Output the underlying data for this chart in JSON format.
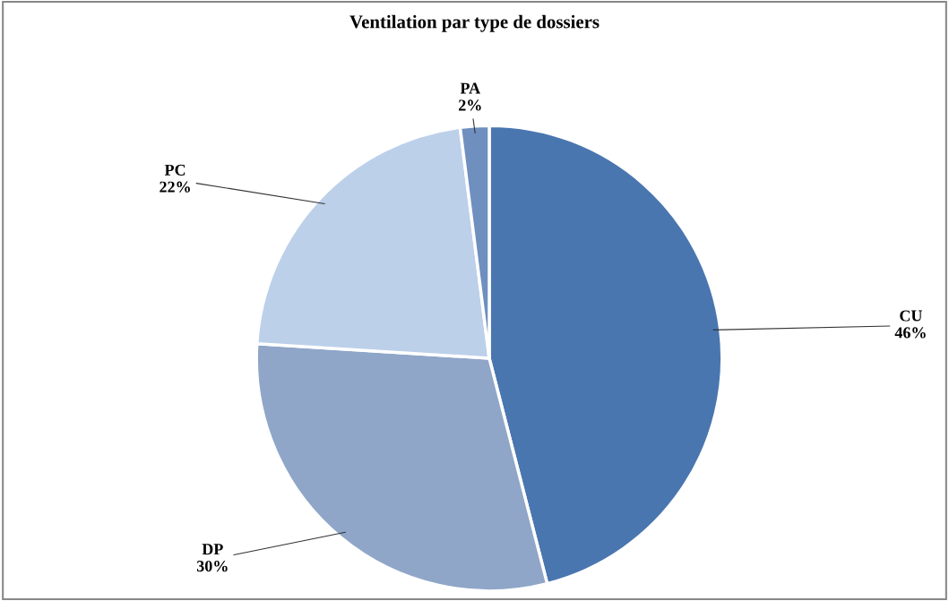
{
  "chart_data": {
    "type": "pie",
    "title": "Ventilation par type de dossiers",
    "categories": [
      "CU",
      "DP",
      "PC",
      "PA"
    ],
    "values": [
      46,
      30,
      22,
      2
    ],
    "value_labels": [
      "46%",
      "30%",
      "22%",
      "2%"
    ],
    "colors": [
      "#4a76b0",
      "#8fa6c8",
      "#bcd0ea",
      "#6f8fbf"
    ],
    "legend": false
  }
}
